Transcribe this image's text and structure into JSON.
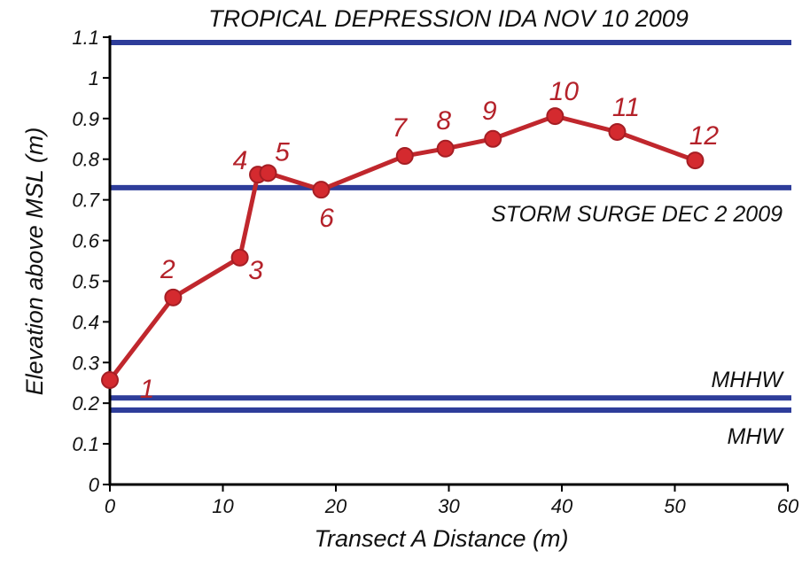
{
  "chart_data": {
    "type": "line",
    "title": "TROPICAL DEPRESSION IDA NOV 10 2009",
    "xlabel": "Transect A Distance (m)",
    "ylabel": "Elevation above MSL (m)",
    "xlim": [
      0,
      60
    ],
    "ylim": [
      0,
      1.1
    ],
    "xticks": [
      0,
      10,
      20,
      30,
      40,
      50,
      60
    ],
    "yticks": [
      0,
      0.1,
      0.2,
      0.3,
      0.4,
      0.5,
      0.6,
      0.7,
      0.8,
      0.9,
      1,
      1.1
    ],
    "grid": false,
    "series": [
      {
        "name": "Transect A",
        "color": "#c0272d",
        "points": [
          {
            "label": "1",
            "x": 0,
            "y": 0.257
          },
          {
            "label": "2",
            "x": 5.6,
            "y": 0.46
          },
          {
            "label": "3",
            "x": 11.5,
            "y": 0.558
          },
          {
            "label": "4",
            "x": 13.1,
            "y": 0.762
          },
          {
            "label": "5",
            "x": 14.0,
            "y": 0.766
          },
          {
            "label": "6",
            "x": 18.7,
            "y": 0.725
          },
          {
            "label": "7",
            "x": 26.1,
            "y": 0.808
          },
          {
            "label": "8",
            "x": 29.7,
            "y": 0.826
          },
          {
            "label": "9",
            "x": 33.9,
            "y": 0.85
          },
          {
            "label": "10",
            "x": 39.4,
            "y": 0.906
          },
          {
            "label": "11",
            "x": 44.9,
            "y": 0.867
          },
          {
            "label": "12",
            "x": 51.8,
            "y": 0.797
          }
        ]
      }
    ],
    "reference_lines": [
      {
        "name": "TROPICAL DEPRESSION IDA NOV 10 2009",
        "y": 1.087,
        "color": "#2e3d9a",
        "show_label": false
      },
      {
        "name": "STORM SURGE DEC 2 2009",
        "y": 0.73,
        "color": "#2e3d9a",
        "show_label": true,
        "label_pos": "below"
      },
      {
        "name": "MHHW",
        "y": 0.213,
        "color": "#2e3d9a",
        "show_label": true,
        "label_pos": "above"
      },
      {
        "name": "MHW",
        "y": 0.183,
        "color": "#2e3d9a",
        "show_label": true,
        "label_pos": "below"
      }
    ]
  }
}
